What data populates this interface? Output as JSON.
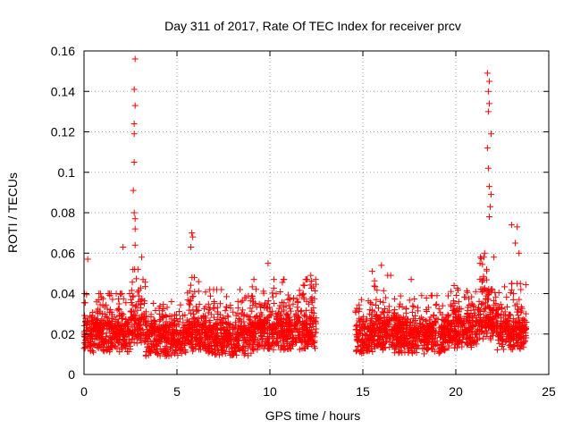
{
  "chart_data": {
    "type": "scatter",
    "title": "Day 311 of 2017, Rate Of TEC Index for receiver prcv",
    "xlabel": "GPS time / hours",
    "ylabel": "ROTI / TECUs",
    "xlim": [
      0,
      25
    ],
    "ylim": [
      0,
      0.16
    ],
    "x_ticks": [
      "0",
      "5",
      "10",
      "15",
      "20",
      "25"
    ],
    "y_ticks": [
      "0",
      "0.02",
      "0.04",
      "0.06",
      "0.08",
      "0.1",
      "0.12",
      "0.14",
      "0.16"
    ],
    "grid": true,
    "marker": "+",
    "color": "#ff0000",
    "data_gap_hours": [
      12.5,
      14.6
    ],
    "notable_points": [
      {
        "x": 2.75,
        "y": 0.156
      },
      {
        "x": 2.7,
        "y": 0.141
      },
      {
        "x": 2.75,
        "y": 0.133
      },
      {
        "x": 2.7,
        "y": 0.124
      },
      {
        "x": 2.7,
        "y": 0.119
      },
      {
        "x": 2.7,
        "y": 0.105
      },
      {
        "x": 2.65,
        "y": 0.091
      },
      {
        "x": 2.7,
        "y": 0.08
      },
      {
        "x": 2.75,
        "y": 0.077
      },
      {
        "x": 2.75,
        "y": 0.072
      },
      {
        "x": 2.75,
        "y": 0.064
      },
      {
        "x": 3.1,
        "y": 0.058
      },
      {
        "x": 2.1,
        "y": 0.063
      },
      {
        "x": 0.2,
        "y": 0.057
      },
      {
        "x": 5.8,
        "y": 0.07
      },
      {
        "x": 5.85,
        "y": 0.068
      },
      {
        "x": 5.75,
        "y": 0.063
      },
      {
        "x": 12.2,
        "y": 0.049
      },
      {
        "x": 21.7,
        "y": 0.149
      },
      {
        "x": 21.8,
        "y": 0.145
      },
      {
        "x": 21.75,
        "y": 0.14
      },
      {
        "x": 21.8,
        "y": 0.134
      },
      {
        "x": 21.75,
        "y": 0.13
      },
      {
        "x": 21.9,
        "y": 0.119
      },
      {
        "x": 21.7,
        "y": 0.112
      },
      {
        "x": 21.75,
        "y": 0.102
      },
      {
        "x": 21.8,
        "y": 0.093
      },
      {
        "x": 21.9,
        "y": 0.089
      },
      {
        "x": 21.85,
        "y": 0.083
      },
      {
        "x": 21.8,
        "y": 0.078
      },
      {
        "x": 21.55,
        "y": 0.06
      },
      {
        "x": 21.3,
        "y": 0.055
      },
      {
        "x": 23.0,
        "y": 0.074
      },
      {
        "x": 23.3,
        "y": 0.073
      },
      {
        "x": 23.2,
        "y": 0.065
      },
      {
        "x": 23.4,
        "y": 0.06
      },
      {
        "x": 17.6,
        "y": 0.047
      },
      {
        "x": 16.0,
        "y": 0.054
      },
      {
        "x": 15.5,
        "y": 0.051
      },
      {
        "x": 9.9,
        "y": 0.055
      }
    ],
    "background_segments": [
      {
        "x_start": 0.0,
        "x_end": 2.5,
        "baseline": 0.018,
        "amplitude": 0.022
      },
      {
        "x_start": 2.5,
        "x_end": 3.3,
        "baseline": 0.022,
        "amplitude": 0.03
      },
      {
        "x_start": 3.3,
        "x_end": 5.5,
        "baseline": 0.016,
        "amplitude": 0.02
      },
      {
        "x_start": 5.5,
        "x_end": 6.5,
        "baseline": 0.018,
        "amplitude": 0.03
      },
      {
        "x_start": 6.5,
        "x_end": 9.0,
        "baseline": 0.016,
        "amplitude": 0.026
      },
      {
        "x_start": 9.0,
        "x_end": 12.5,
        "baseline": 0.019,
        "amplitude": 0.028
      },
      {
        "x_start": 14.6,
        "x_end": 15.6,
        "baseline": 0.017,
        "amplitude": 0.02
      },
      {
        "x_start": 15.6,
        "x_end": 16.6,
        "baseline": 0.019,
        "amplitude": 0.03
      },
      {
        "x_start": 16.6,
        "x_end": 19.5,
        "baseline": 0.017,
        "amplitude": 0.022
      },
      {
        "x_start": 19.5,
        "x_end": 21.2,
        "baseline": 0.02,
        "amplitude": 0.024
      },
      {
        "x_start": 21.2,
        "x_end": 22.2,
        "baseline": 0.024,
        "amplitude": 0.034
      },
      {
        "x_start": 22.2,
        "x_end": 23.8,
        "baseline": 0.019,
        "amplitude": 0.026
      }
    ]
  }
}
